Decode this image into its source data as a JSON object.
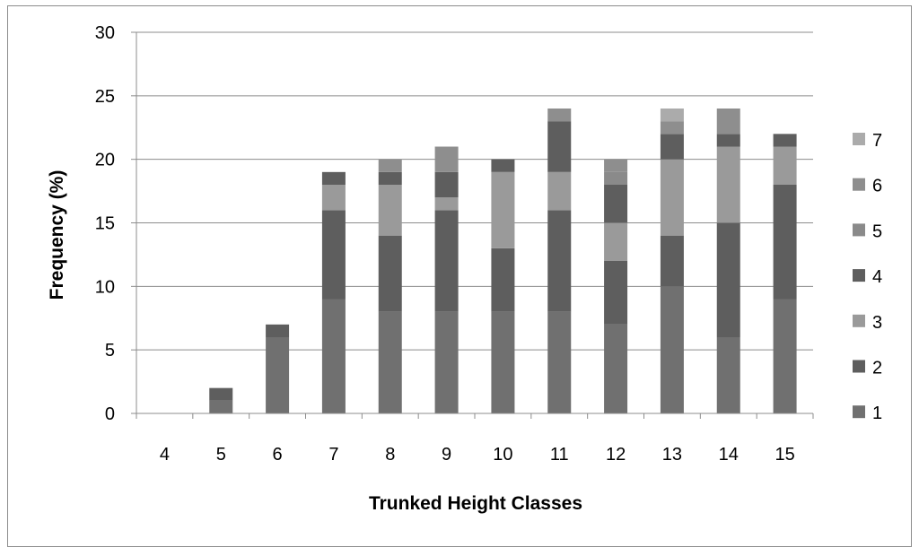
{
  "chart_data": {
    "type": "bar",
    "stacked": true,
    "xlabel": "Trunked Height Classes",
    "ylabel": "Frequency (%)",
    "ylim": [
      0,
      30
    ],
    "yticks": [
      0,
      5,
      10,
      15,
      20,
      25,
      30
    ],
    "grid": true,
    "legend_position": "right",
    "categories": [
      "4",
      "5",
      "6",
      "7",
      "8",
      "9",
      "10",
      "11",
      "12",
      "13",
      "14",
      "15"
    ],
    "series": [
      {
        "name": "1",
        "color": "#707070",
        "values": [
          0,
          1,
          6,
          9,
          8,
          8,
          8,
          8,
          7,
          10,
          6,
          9
        ]
      },
      {
        "name": "2",
        "color": "#5e5e5e",
        "values": [
          0,
          1,
          1,
          7,
          6,
          8,
          5,
          8,
          5,
          4,
          9,
          9
        ]
      },
      {
        "name": "3",
        "color": "#9a9a9a",
        "values": [
          0,
          0,
          0,
          2,
          4,
          1,
          6,
          3,
          3,
          6,
          6,
          3
        ]
      },
      {
        "name": "4",
        "color": "#5e5e5e",
        "values": [
          0,
          0,
          0,
          1,
          1,
          2,
          1,
          4,
          3,
          2,
          1,
          1
        ]
      },
      {
        "name": "5",
        "color": "#8a8a8a",
        "values": [
          0,
          0,
          0,
          0,
          0,
          0,
          0,
          0,
          1,
          0,
          0,
          0
        ]
      },
      {
        "name": "6",
        "color": "#8e8e8e",
        "values": [
          0,
          0,
          0,
          0,
          1,
          2,
          0,
          1,
          1,
          1,
          2,
          0
        ]
      },
      {
        "name": "7",
        "color": "#ababab",
        "values": [
          0,
          0,
          0,
          0,
          0,
          0,
          0,
          0,
          0,
          1,
          0,
          0
        ]
      }
    ]
  }
}
